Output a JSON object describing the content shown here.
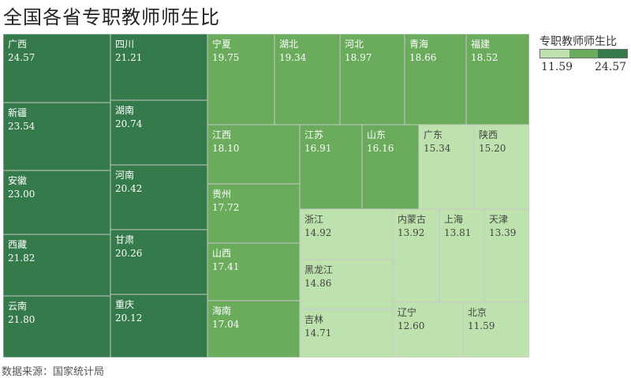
{
  "title": "全国各省专职教师师生比",
  "source": "数据来源：国家统计局",
  "legend": {
    "title": "专职教师师生比",
    "min": "11.59",
    "max": "24.57"
  },
  "colors": {
    "dark": "#347a4b",
    "medium": "#6aab5c",
    "light": "#bde2ad",
    "tile_border": "#c8c8c8",
    "text": "#ffffff",
    "text_light": "#444444",
    "legend_scale": [
      "#bde2ad",
      "#6aab5c",
      "#347a4b"
    ]
  },
  "chart_data": {
    "type": "treemap",
    "title": "全国各省专职教师师生比",
    "color_scale": {
      "min": 11.59,
      "max": 24.57
    },
    "items": [
      {
        "name": "广西",
        "value": 24.57
      },
      {
        "name": "新疆",
        "value": 23.54
      },
      {
        "name": "安徽",
        "value": 23.0
      },
      {
        "name": "西藏",
        "value": 21.82
      },
      {
        "name": "云南",
        "value": 21.8
      },
      {
        "name": "四川",
        "value": 21.21
      },
      {
        "name": "湖南",
        "value": 20.74
      },
      {
        "name": "河南",
        "value": 20.42
      },
      {
        "name": "甘肃",
        "value": 20.26
      },
      {
        "name": "重庆",
        "value": 20.12
      },
      {
        "name": "宁夏",
        "value": 19.75
      },
      {
        "name": "湖北",
        "value": 19.34
      },
      {
        "name": "河北",
        "value": 18.97
      },
      {
        "name": "青海",
        "value": 18.66
      },
      {
        "name": "福建",
        "value": 18.52
      },
      {
        "name": "江西",
        "value": 18.1
      },
      {
        "name": "贵州",
        "value": 17.72
      },
      {
        "name": "山西",
        "value": 17.41
      },
      {
        "name": "海南",
        "value": 17.04
      },
      {
        "name": "江苏",
        "value": 16.91
      },
      {
        "name": "山东",
        "value": 16.16
      },
      {
        "name": "广东",
        "value": 15.34
      },
      {
        "name": "陕西",
        "value": 15.2
      },
      {
        "name": "浙江",
        "value": 14.92
      },
      {
        "name": "黑龙江",
        "value": 14.86
      },
      {
        "name": "吉林",
        "value": 14.71
      },
      {
        "name": "内蒙古",
        "value": 13.92
      },
      {
        "name": "上海",
        "value": 13.81
      },
      {
        "name": "天津",
        "value": 13.39
      },
      {
        "name": "辽宁",
        "value": 12.6
      },
      {
        "name": "北京",
        "value": 11.59
      }
    ]
  }
}
